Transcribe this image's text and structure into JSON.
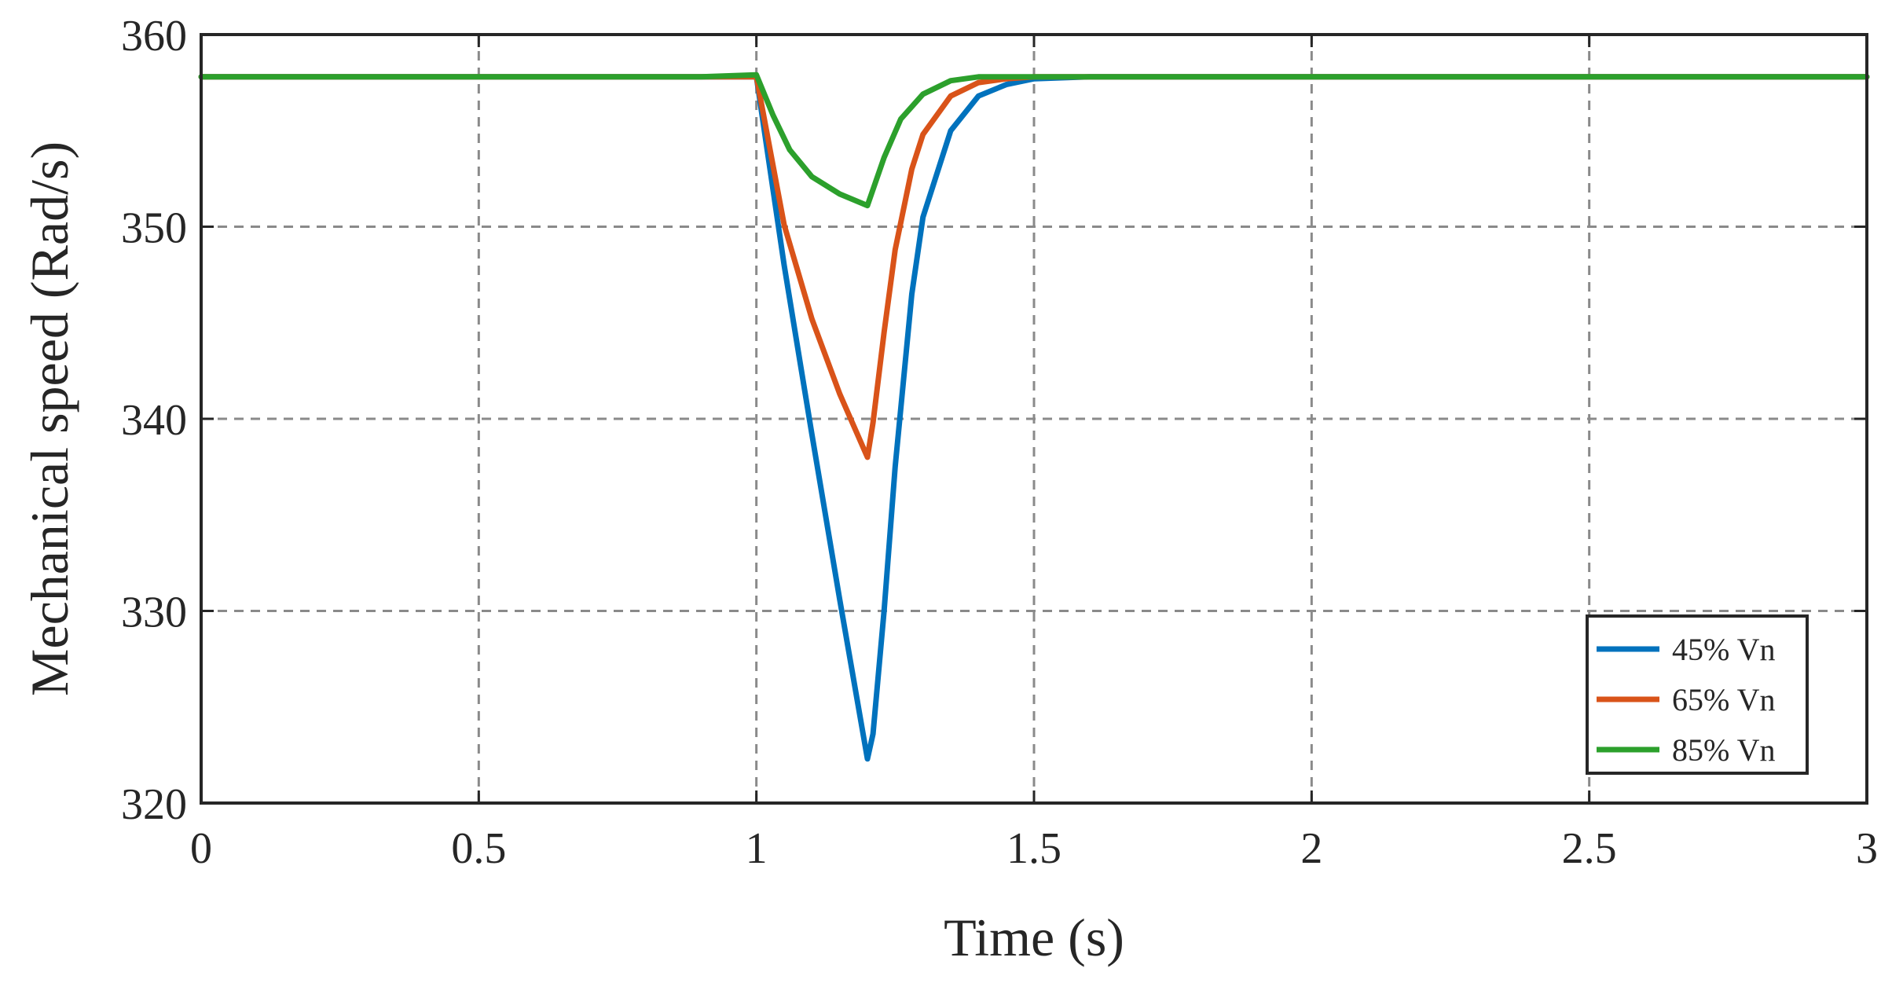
{
  "chart_data": {
    "type": "line",
    "title": "",
    "xlabel": "Time (s)",
    "ylabel": "Mechanical speed (Rad/s)",
    "xlim": [
      0,
      3
    ],
    "ylim": [
      320,
      360
    ],
    "xticks": [
      0,
      0.5,
      1,
      1.5,
      2,
      2.5,
      3
    ],
    "xtick_labels": [
      "0",
      "0.5",
      "1",
      "1.5",
      "2",
      "2.5",
      "3"
    ],
    "yticks": [
      320,
      330,
      340,
      350,
      360
    ],
    "ytick_labels": [
      "320",
      "330",
      "340",
      "350",
      "360"
    ],
    "grid": true,
    "legend_position": "bottom-right",
    "series": [
      {
        "name": "45% Vn",
        "color": "#0072BD",
        "x": [
          0,
          1.0,
          1.05,
          1.1,
          1.15,
          1.2,
          1.21,
          1.23,
          1.25,
          1.28,
          1.3,
          1.35,
          1.4,
          1.45,
          1.5,
          1.6,
          1.7,
          2.0,
          2.5,
          3.0
        ],
        "y": [
          357.8,
          357.8,
          348.0,
          339.2,
          330.6,
          322.3,
          323.6,
          330.0,
          337.5,
          346.5,
          350.5,
          355.0,
          356.8,
          357.4,
          357.7,
          357.8,
          357.8,
          357.8,
          357.8,
          357.8
        ]
      },
      {
        "name": "65% Vn",
        "color": "#D95319",
        "x": [
          0,
          1.0,
          1.05,
          1.1,
          1.15,
          1.2,
          1.21,
          1.23,
          1.25,
          1.28,
          1.3,
          1.35,
          1.4,
          1.45,
          1.5,
          1.6,
          1.7,
          2.0,
          2.5,
          3.0
        ],
        "y": [
          357.8,
          357.8,
          350.1,
          345.2,
          341.3,
          338.0,
          339.8,
          344.5,
          348.8,
          353.0,
          354.8,
          356.8,
          357.5,
          357.7,
          357.8,
          357.8,
          357.8,
          357.8,
          357.8,
          357.8
        ]
      },
      {
        "name": "85% Vn",
        "color": "#2CA02C",
        "x": [
          0,
          0.9,
          1.0,
          1.03,
          1.06,
          1.1,
          1.15,
          1.2,
          1.23,
          1.26,
          1.3,
          1.35,
          1.4,
          1.45,
          1.5,
          1.6,
          1.7,
          2.0,
          2.5,
          3.0
        ],
        "y": [
          357.8,
          357.8,
          357.9,
          355.8,
          354.0,
          352.6,
          351.7,
          351.1,
          353.6,
          355.6,
          356.9,
          357.6,
          357.8,
          357.8,
          357.8,
          357.8,
          357.8,
          357.8,
          357.8,
          357.8
        ]
      }
    ]
  }
}
